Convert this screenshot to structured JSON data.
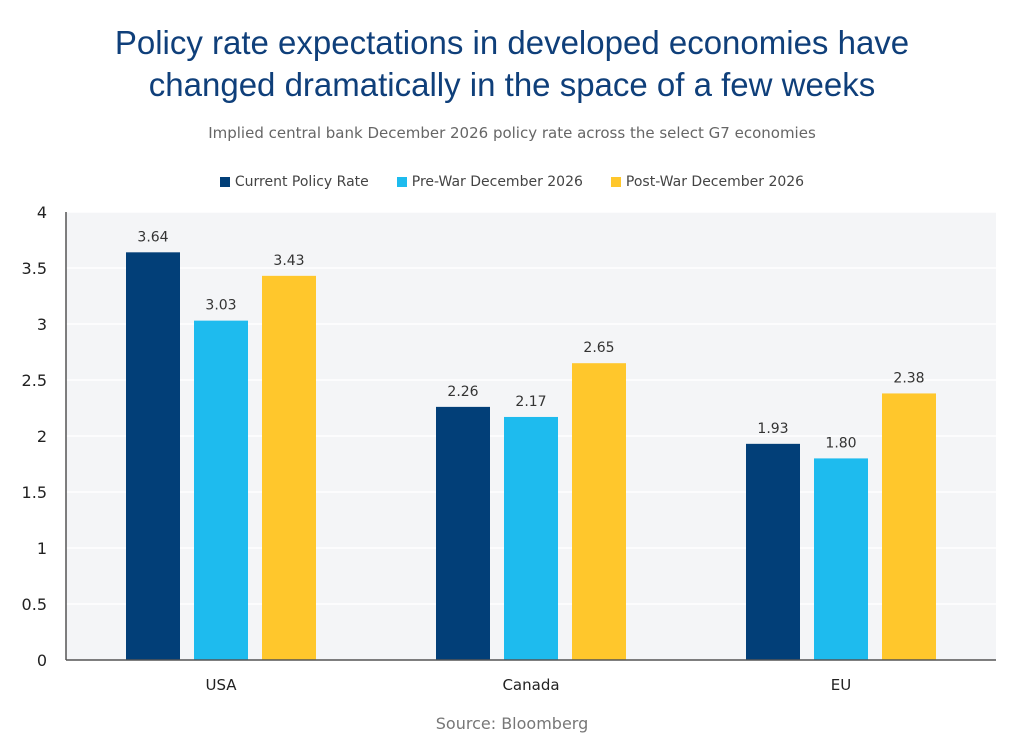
{
  "title_line1": "Policy rate expectations in developed economies have",
  "title_line2": "changed dramatically in the space of a few weeks",
  "subtitle": "Implied central bank December 2026 policy rate across the select G7 economies",
  "source": "Source: Bloomberg",
  "chart_data": {
    "type": "bar",
    "categories": [
      "USA",
      "Canada",
      "EU"
    ],
    "series": [
      {
        "name": "Current Policy Rate",
        "color": "#023f78",
        "values": [
          3.64,
          2.26,
          1.93
        ],
        "labels": [
          "3.64",
          "2.26",
          "1.93"
        ]
      },
      {
        "name": "Pre-War December 2026",
        "color": "#1ebbee",
        "values": [
          3.03,
          2.17,
          1.8
        ],
        "labels": [
          "3.03",
          "2.17",
          "1.80"
        ]
      },
      {
        "name": "Post-War December 2026",
        "color": "#ffc72c",
        "values": [
          3.43,
          2.65,
          2.38
        ],
        "labels": [
          "3.43",
          "2.65",
          "2.38"
        ]
      }
    ],
    "yticks": [
      "0",
      "0.5",
      "1",
      "1.5",
      "2",
      "2.5",
      "3",
      "3.5",
      "4"
    ],
    "ylim": [
      0,
      4
    ],
    "grid": true,
    "legend": "top-center",
    "plot_background": "#f4f5f7"
  }
}
